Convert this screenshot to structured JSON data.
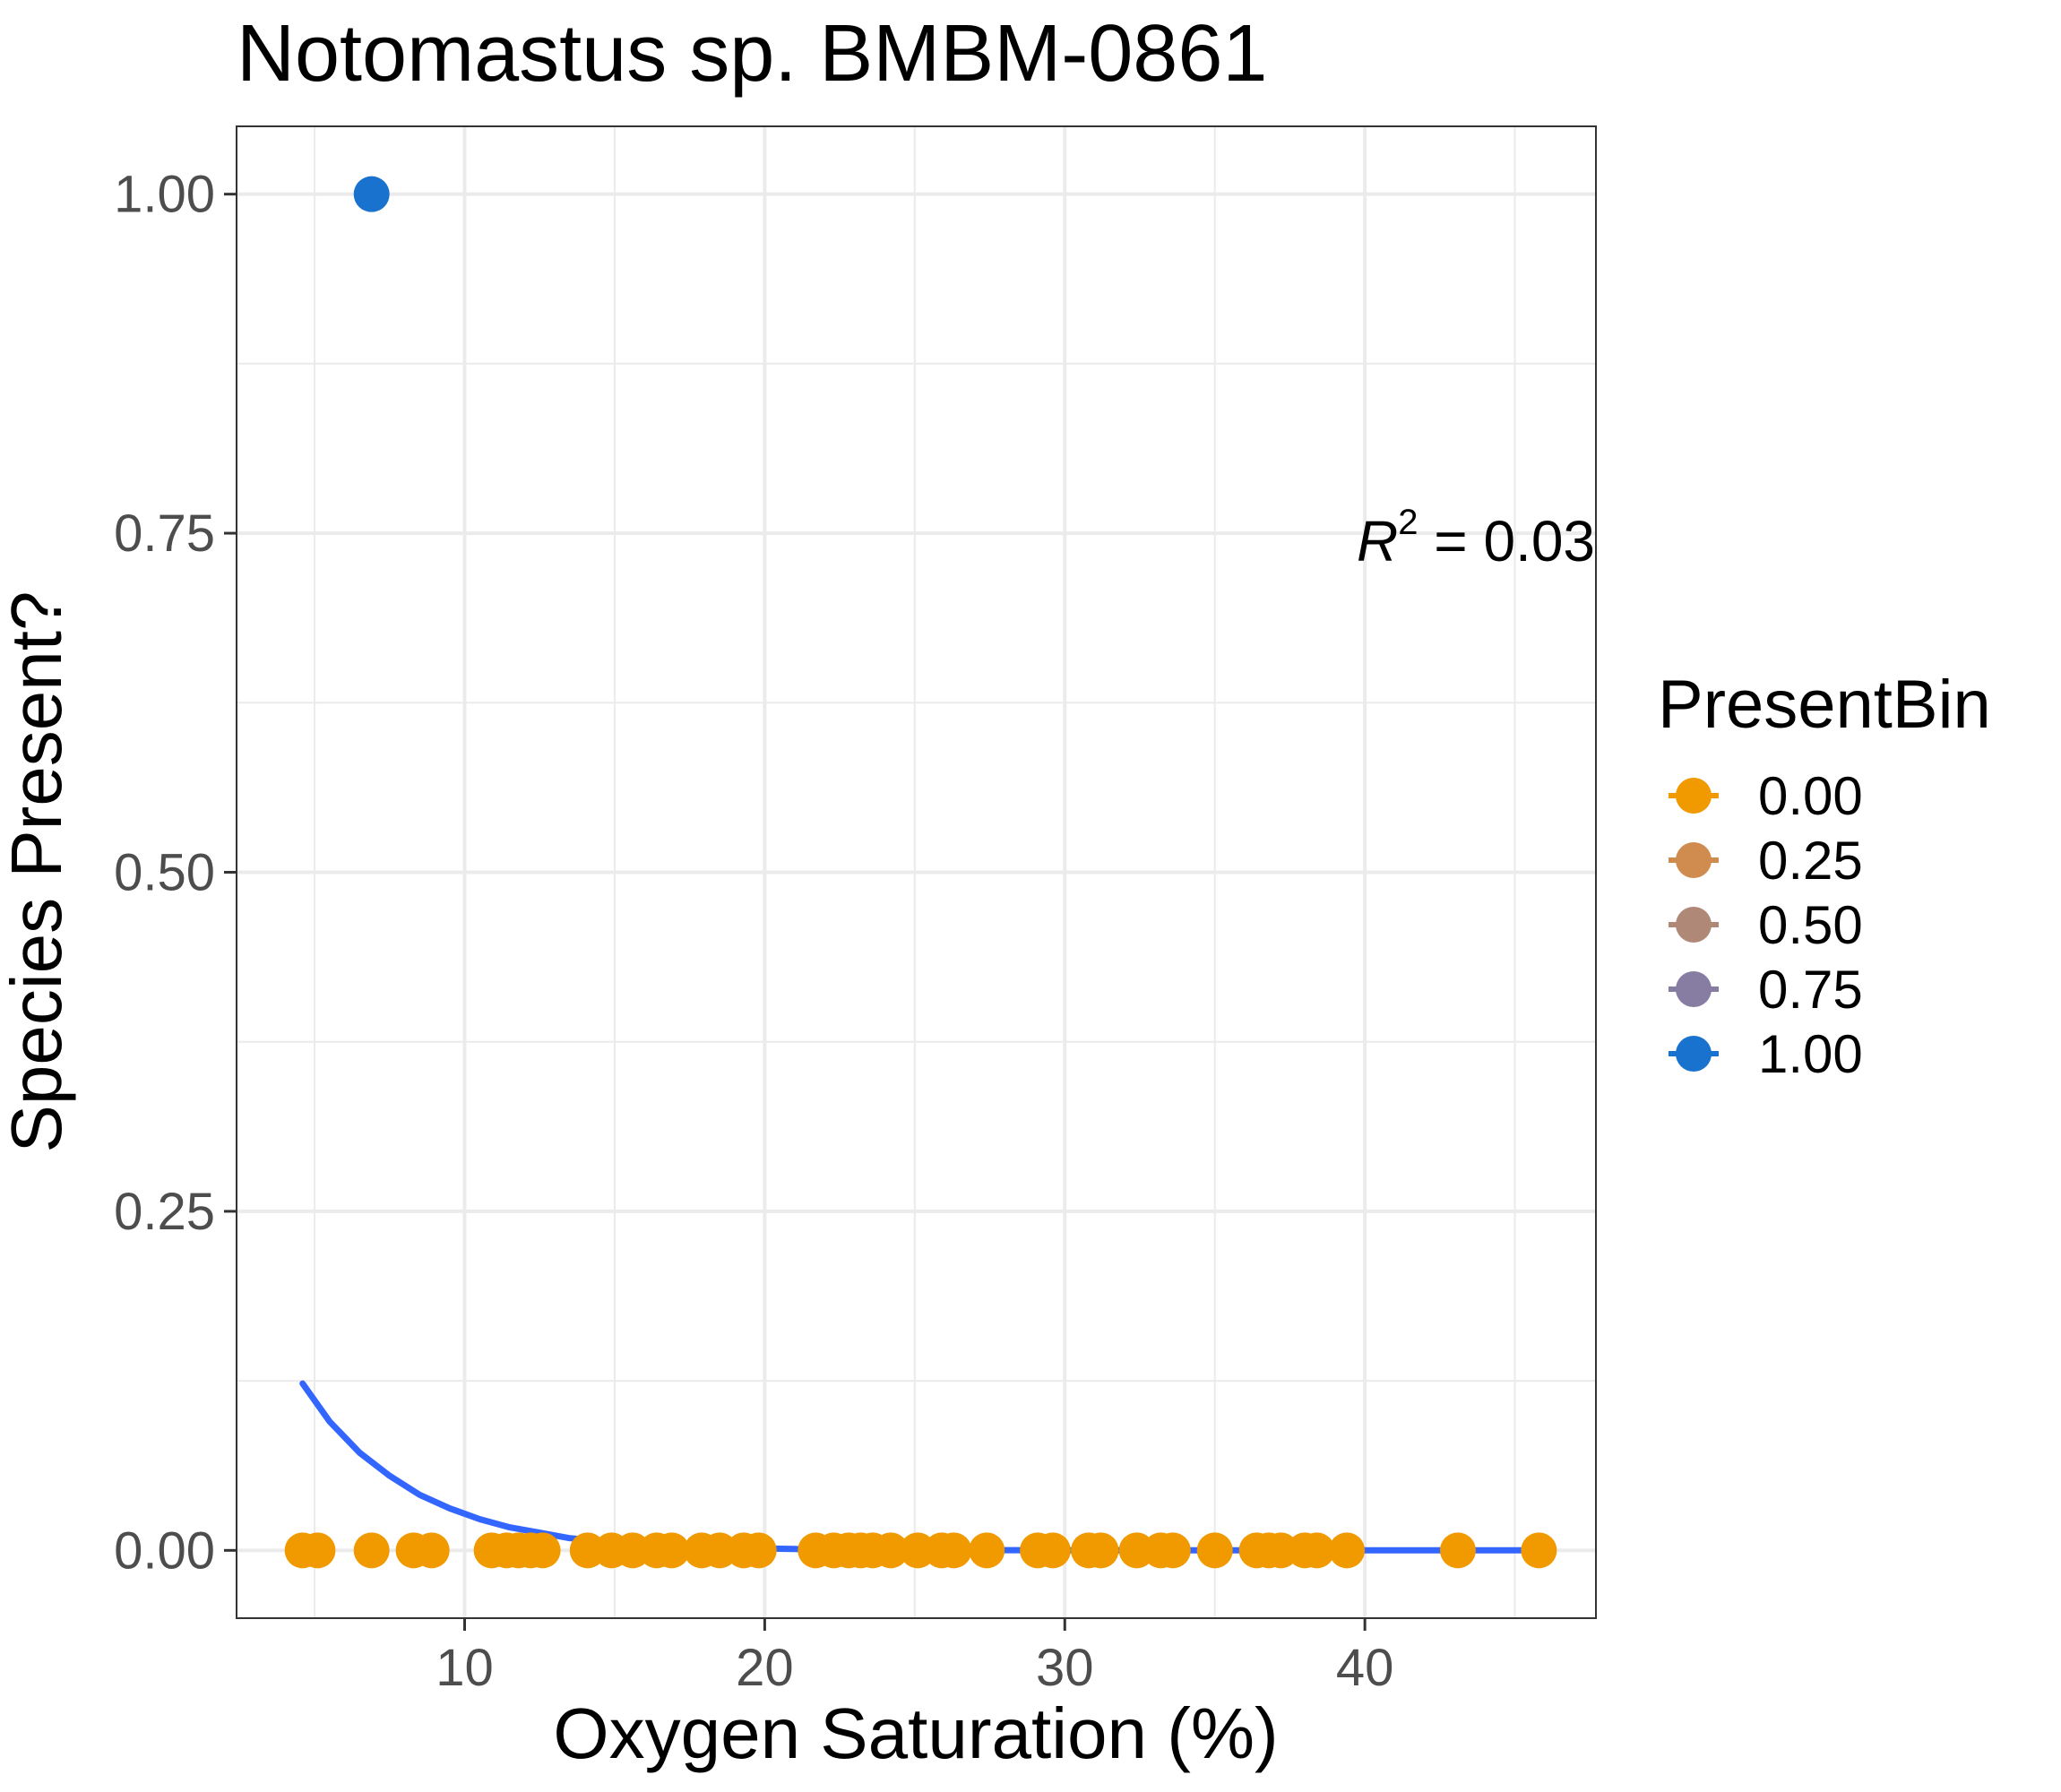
{
  "chart_data": {
    "type": "scatter",
    "title": "Notomastus sp. BMBM-0861",
    "xlabel": "Oxygen Saturation (%)",
    "ylabel": "Species Present?",
    "xlim": [
      2.4,
      47.7
    ],
    "ylim": [
      -0.05,
      1.05
    ],
    "x_ticks": [
      10,
      20,
      30,
      40
    ],
    "x_tick_labels": [
      "10",
      "20",
      "30",
      "40"
    ],
    "y_ticks": [
      0,
      0.25,
      0.5,
      0.75,
      1.0
    ],
    "y_tick_labels": [
      "0.00",
      "0.25",
      "0.50",
      "0.75",
      "1.00"
    ],
    "grid": true,
    "annotation": {
      "label": "R",
      "superscript": "2",
      "text": " = 0.03"
    },
    "legend": {
      "title": "PresentBin",
      "placement": "right",
      "entries": [
        {
          "label": "0.00",
          "color": "#F09A00"
        },
        {
          "label": "0.25",
          "color": "#D08C4E"
        },
        {
          "label": "0.50",
          "color": "#B08878"
        },
        {
          "label": "0.75",
          "color": "#877CA2"
        },
        {
          "label": "1.00",
          "color": "#1A72CF"
        }
      ]
    },
    "series": [
      {
        "presentbin": 0,
        "color": "#F09A00",
        "points": [
          [
            4.6,
            0
          ],
          [
            5.1,
            0
          ],
          [
            6.9,
            0
          ],
          [
            8.3,
            0
          ],
          [
            8.9,
            0
          ],
          [
            10.9,
            0
          ],
          [
            11.4,
            0
          ],
          [
            11.8,
            0
          ],
          [
            12.2,
            0
          ],
          [
            12.6,
            0
          ],
          [
            14.1,
            0
          ],
          [
            14.9,
            0
          ],
          [
            15.6,
            0
          ],
          [
            16.4,
            0
          ],
          [
            16.9,
            0
          ],
          [
            17.9,
            0
          ],
          [
            18.5,
            0
          ],
          [
            19.3,
            0
          ],
          [
            19.8,
            0
          ],
          [
            21.7,
            0
          ],
          [
            22.3,
            0
          ],
          [
            22.8,
            0
          ],
          [
            23.2,
            0
          ],
          [
            23.6,
            0
          ],
          [
            24.2,
            0
          ],
          [
            25.1,
            0
          ],
          [
            25.9,
            0
          ],
          [
            26.3,
            0
          ],
          [
            27.4,
            0
          ],
          [
            29.1,
            0
          ],
          [
            29.6,
            0
          ],
          [
            30.8,
            0
          ],
          [
            31.2,
            0
          ],
          [
            32.4,
            0
          ],
          [
            33.2,
            0
          ],
          [
            33.6,
            0
          ],
          [
            35.0,
            0
          ],
          [
            36.4,
            0
          ],
          [
            36.8,
            0
          ],
          [
            37.2,
            0
          ],
          [
            38.0,
            0
          ],
          [
            38.4,
            0
          ],
          [
            39.4,
            0
          ],
          [
            43.1,
            0
          ],
          [
            45.8,
            0
          ]
        ]
      },
      {
        "presentbin": 1,
        "color": "#1A72CF",
        "points": [
          [
            6.9,
            1
          ]
        ]
      }
    ],
    "fit_line": {
      "color": "#3366FF",
      "points": [
        [
          4.6,
          0.123
        ],
        [
          5.5,
          0.095
        ],
        [
          6.5,
          0.072
        ],
        [
          7.5,
          0.055
        ],
        [
          8.5,
          0.041
        ],
        [
          9.5,
          0.031
        ],
        [
          10.5,
          0.023
        ],
        [
          11.5,
          0.017
        ],
        [
          12.5,
          0.013
        ],
        [
          13.5,
          0.009
        ],
        [
          14.5,
          0.007
        ],
        [
          15.5,
          0.005
        ],
        [
          16.5,
          0.004
        ],
        [
          17.5,
          0.003
        ],
        [
          18.5,
          0.002
        ],
        [
          19.5,
          0.0015
        ],
        [
          21,
          0.001
        ],
        [
          23,
          0.0005
        ],
        [
          26,
          0.0002
        ],
        [
          30,
          0.0001
        ],
        [
          35,
          0
        ],
        [
          40,
          0
        ],
        [
          45.8,
          0
        ]
      ]
    }
  }
}
